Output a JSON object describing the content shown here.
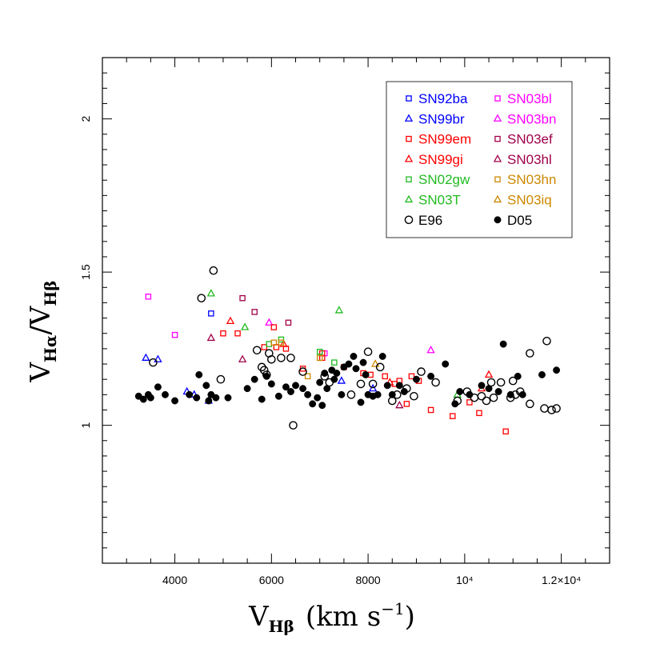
{
  "chart_data": {
    "type": "scatter",
    "xlabel": {
      "main": "V",
      "sub": "Hβ",
      "units": "(km s",
      "sup": "−1",
      "close": ")"
    },
    "ylabel": {
      "num_main": "V",
      "num_sub": "Hα",
      "slash": "/",
      "den_main": "V",
      "den_sub": "Hβ"
    },
    "xlim": [
      2500,
      13000
    ],
    "ylim": [
      0.55,
      2.2
    ],
    "x_ticks": [
      {
        "value": 4000,
        "label": "4000"
      },
      {
        "value": 6000,
        "label": "6000"
      },
      {
        "value": 8000,
        "label": "8000"
      },
      {
        "value": 10000,
        "label": "10⁴"
      },
      {
        "value": 12000,
        "label": "1.2×10⁴"
      }
    ],
    "y_ticks": [
      {
        "value": 1,
        "label": "1"
      },
      {
        "value": 1.5,
        "label": "1.5"
      },
      {
        "value": 2,
        "label": "2"
      }
    ],
    "legend_position": "top-right",
    "series": [
      {
        "name": "SN92ba",
        "marker": "square",
        "color": "#0000ff",
        "points": [
          [
            4750,
            1.365
          ]
        ]
      },
      {
        "name": "SN03bl",
        "marker": "square",
        "color": "#ff00ff",
        "points": [
          [
            3450,
            1.42
          ],
          [
            4000,
            1.295
          ],
          [
            7100,
            1.235
          ]
        ]
      },
      {
        "name": "SN99br",
        "marker": "triangle",
        "color": "#0000ff",
        "points": [
          [
            3400,
            1.22
          ],
          [
            3650,
            1.215
          ],
          [
            4250,
            1.11
          ],
          [
            4400,
            1.1
          ],
          [
            4700,
            1.08
          ],
          [
            7450,
            1.145
          ],
          [
            8100,
            1.12
          ]
        ]
      },
      {
        "name": "SN03bn",
        "marker": "triangle",
        "color": "#ff00ff",
        "points": [
          [
            5950,
            1.335
          ],
          [
            9300,
            1.245
          ]
        ]
      },
      {
        "name": "SN99em",
        "marker": "square",
        "color": "#ff0000",
        "points": [
          [
            5000,
            1.3
          ],
          [
            5300,
            1.3
          ],
          [
            5850,
            1.255
          ],
          [
            6050,
            1.32
          ],
          [
            6100,
            1.255
          ],
          [
            6300,
            1.25
          ],
          [
            6650,
            1.185
          ],
          [
            7050,
            1.235
          ],
          [
            7050,
            1.22
          ],
          [
            7500,
            1.19
          ],
          [
            7900,
            1.17
          ],
          [
            8050,
            1.165
          ],
          [
            8350,
            1.16
          ],
          [
            8550,
            1.135
          ],
          [
            8650,
            1.145
          ],
          [
            8800,
            1.07
          ],
          [
            8900,
            1.16
          ],
          [
            9050,
            1.145
          ],
          [
            9300,
            1.05
          ],
          [
            9750,
            1.03
          ],
          [
            10100,
            1.075
          ],
          [
            10300,
            1.04
          ],
          [
            10850,
            0.98
          ]
        ]
      },
      {
        "name": "SN03ef",
        "marker": "square",
        "color": "#a0004a",
        "points": [
          [
            5400,
            1.415
          ],
          [
            5650,
            1.37
          ],
          [
            6350,
            1.335
          ]
        ]
      },
      {
        "name": "SN99gi",
        "marker": "triangle",
        "color": "#ff0000",
        "points": [
          [
            5150,
            1.34
          ],
          [
            6250,
            1.265
          ],
          [
            8450,
            1.14
          ],
          [
            10350,
            1.12
          ],
          [
            10500,
            1.165
          ]
        ]
      },
      {
        "name": "SN03hl",
        "marker": "triangle",
        "color": "#a0004a",
        "points": [
          [
            4750,
            1.285
          ],
          [
            5400,
            1.215
          ],
          [
            8650,
            1.065
          ]
        ]
      },
      {
        "name": "SN02gw",
        "marker": "square",
        "color": "#22bb22",
        "points": [
          [
            5950,
            1.265
          ],
          [
            6200,
            1.28
          ],
          [
            7000,
            1.24
          ],
          [
            7300,
            1.205
          ]
        ]
      },
      {
        "name": "SN03hn",
        "marker": "square",
        "color": "#cc8800",
        "points": [
          [
            6050,
            1.27
          ],
          [
            6200,
            1.27
          ],
          [
            6750,
            1.16
          ],
          [
            7000,
            1.22
          ]
        ]
      },
      {
        "name": "SN03T",
        "marker": "triangle",
        "color": "#22bb22",
        "points": [
          [
            4750,
            1.43
          ],
          [
            5450,
            1.32
          ],
          [
            7400,
            1.375
          ],
          [
            9850,
            1.1
          ]
        ]
      },
      {
        "name": "SN03iq",
        "marker": "triangle",
        "color": "#cc8800",
        "points": [
          [
            8150,
            1.2
          ]
        ]
      },
      {
        "name": "E96",
        "marker": "open-circle",
        "color": "#000000",
        "points": [
          [
            3550,
            1.205
          ],
          [
            4550,
            1.415
          ],
          [
            4800,
            1.505
          ],
          [
            4950,
            1.15
          ],
          [
            5700,
            1.245
          ],
          [
            5800,
            1.19
          ],
          [
            5850,
            1.18
          ],
          [
            5900,
            1.165
          ],
          [
            5950,
            1.235
          ],
          [
            6000,
            1.215
          ],
          [
            6200,
            1.22
          ],
          [
            6400,
            1.22
          ],
          [
            6450,
            1.0
          ],
          [
            6650,
            1.175
          ],
          [
            7100,
            1.16
          ],
          [
            7200,
            1.14
          ],
          [
            7650,
            1.1
          ],
          [
            7850,
            1.135
          ],
          [
            8000,
            1.24
          ],
          [
            8100,
            1.135
          ],
          [
            8250,
            1.19
          ],
          [
            8500,
            1.08
          ],
          [
            8600,
            1.1
          ],
          [
            8800,
            1.12
          ],
          [
            8950,
            1.095
          ],
          [
            9100,
            1.175
          ],
          [
            9400,
            1.14
          ],
          [
            9850,
            1.08
          ],
          [
            10050,
            1.11
          ],
          [
            10200,
            1.09
          ],
          [
            10350,
            1.095
          ],
          [
            10450,
            1.08
          ],
          [
            10550,
            1.14
          ],
          [
            10600,
            1.09
          ],
          [
            10750,
            1.14
          ],
          [
            10950,
            1.09
          ],
          [
            11000,
            1.145
          ],
          [
            11050,
            1.1
          ],
          [
            11150,
            1.11
          ],
          [
            11350,
            1.235
          ],
          [
            11350,
            1.07
          ],
          [
            11650,
            1.055
          ],
          [
            11700,
            1.275
          ],
          [
            11800,
            1.05
          ],
          [
            11900,
            1.055
          ]
        ]
      },
      {
        "name": "D05",
        "marker": "filled-circle",
        "color": "#000000",
        "points": [
          [
            3250,
            1.095
          ],
          [
            3350,
            1.085
          ],
          [
            3450,
            1.1
          ],
          [
            3500,
            1.09
          ],
          [
            3650,
            1.125
          ],
          [
            3800,
            1.1
          ],
          [
            4000,
            1.08
          ],
          [
            4300,
            1.1
          ],
          [
            4450,
            1.09
          ],
          [
            4500,
            1.165
          ],
          [
            4650,
            1.13
          ],
          [
            4700,
            1.08
          ],
          [
            4750,
            1.1
          ],
          [
            4850,
            1.09
          ],
          [
            5100,
            1.09
          ],
          [
            5500,
            1.12
          ],
          [
            5650,
            1.15
          ],
          [
            5800,
            1.085
          ],
          [
            5900,
            1.16
          ],
          [
            6000,
            1.135
          ],
          [
            6150,
            1.095
          ],
          [
            6300,
            1.125
          ],
          [
            6400,
            1.11
          ],
          [
            6500,
            1.13
          ],
          [
            6650,
            1.12
          ],
          [
            6750,
            1.1
          ],
          [
            6850,
            1.07
          ],
          [
            6950,
            1.09
          ],
          [
            7000,
            1.14
          ],
          [
            7050,
            1.065
          ],
          [
            7100,
            1.17
          ],
          [
            7150,
            1.12
          ],
          [
            7250,
            1.18
          ],
          [
            7300,
            1.15
          ],
          [
            7350,
            1.17
          ],
          [
            7450,
            1.1
          ],
          [
            7500,
            1.19
          ],
          [
            7600,
            1.2
          ],
          [
            7700,
            1.225
          ],
          [
            7750,
            1.185
          ],
          [
            7850,
            1.075
          ],
          [
            7900,
            1.205
          ],
          [
            7950,
            1.165
          ],
          [
            8000,
            1.1
          ],
          [
            8100,
            1.095
          ],
          [
            8200,
            1.1
          ],
          [
            8300,
            1.225
          ],
          [
            8400,
            1.13
          ],
          [
            8500,
            1.1
          ],
          [
            8650,
            1.13
          ],
          [
            8750,
            1.11
          ],
          [
            9000,
            1.15
          ],
          [
            9300,
            1.16
          ],
          [
            9600,
            1.2
          ],
          [
            9800,
            1.07
          ],
          [
            9900,
            1.11
          ],
          [
            10100,
            1.1
          ],
          [
            10350,
            1.13
          ],
          [
            10500,
            1.12
          ],
          [
            10700,
            1.11
          ],
          [
            10800,
            1.265
          ],
          [
            10950,
            1.1
          ],
          [
            11100,
            1.16
          ],
          [
            11200,
            1.1
          ],
          [
            11600,
            1.165
          ],
          [
            11900,
            1.18
          ]
        ]
      }
    ]
  }
}
